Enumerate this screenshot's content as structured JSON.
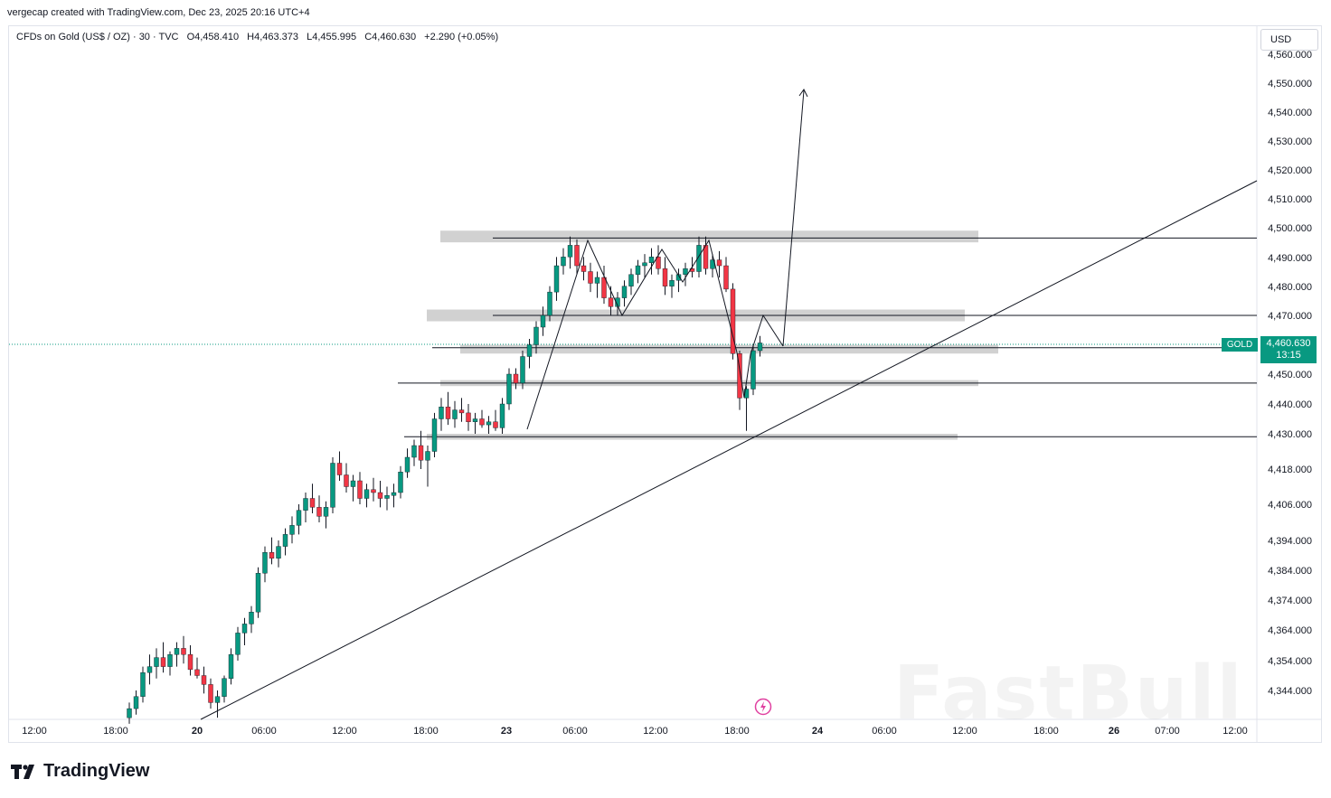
{
  "credit": "vergecap created with TradingView.com, Dec 23, 2025 20:16 UTC+4",
  "legend": {
    "symbol": "CFDs on Gold (US$ / OZ) · 30 · TVC",
    "open": "O4,458.410",
    "high": "H4,463.373",
    "low": "L4,455.995",
    "close": "C4,460.630",
    "change": "+2.290 (+0.05%)"
  },
  "currency": "USD",
  "price_badge": {
    "symbol": "GOLD",
    "price": "4,460.630",
    "countdown": "13:15"
  },
  "logo": "TradingView",
  "watermark": "FastBull",
  "colors": {
    "up": "#089981",
    "down": "#f23645",
    "zone": "#d1d1d1",
    "line": "#131722"
  },
  "chart_data": {
    "type": "candlestick",
    "yticks": [
      "4,560.000",
      "4,550.000",
      "4,540.000",
      "4,530.000",
      "4,520.000",
      "4,510.000",
      "4,500.000",
      "4,490.000",
      "4,480.000",
      "4,470.000",
      "4,450.000",
      "4,440.000",
      "4,430.000",
      "4,418.000",
      "4,406.000",
      "4,394.000",
      "4,384.000",
      "4,374.000",
      "4,364.000",
      "4,354.000",
      "4,344.000"
    ],
    "xticks": [
      {
        "label": "12:00",
        "bold": false
      },
      {
        "label": "18:00",
        "bold": false
      },
      {
        "label": "20",
        "bold": true
      },
      {
        "label": "06:00",
        "bold": false
      },
      {
        "label": "12:00",
        "bold": false
      },
      {
        "label": "18:00",
        "bold": false
      },
      {
        "label": "23",
        "bold": true
      },
      {
        "label": "06:00",
        "bold": false
      },
      {
        "label": "12:00",
        "bold": false
      },
      {
        "label": "18:00",
        "bold": false
      },
      {
        "label": "24",
        "bold": true
      },
      {
        "label": "06:00",
        "bold": false
      },
      {
        "label": "12:00",
        "bold": false
      },
      {
        "label": "18:00",
        "bold": false
      },
      {
        "label": "26",
        "bold": true
      },
      {
        "label": "07:00",
        "bold": false
      },
      {
        "label": "12:00",
        "bold": false
      }
    ],
    "last_price": 4460.63,
    "zones": [
      {
        "low": 4495,
        "high": 4499
      },
      {
        "low": 4468,
        "high": 4472
      },
      {
        "low": 4457,
        "high": 4460
      },
      {
        "low": 4446,
        "high": 4448
      },
      {
        "low": 4428,
        "high": 4430
      }
    ],
    "levels": [
      4496.5,
      4470,
      4459,
      4447,
      4429
    ],
    "candles": [
      [
        4335,
        4340,
        4333,
        4338
      ],
      [
        4338,
        4344,
        4336,
        4342
      ],
      [
        4342,
        4352,
        4340,
        4350
      ],
      [
        4350,
        4356,
        4346,
        4352
      ],
      [
        4352,
        4358,
        4348,
        4355
      ],
      [
        4355,
        4360,
        4350,
        4352
      ],
      [
        4352,
        4357,
        4349,
        4356
      ],
      [
        4356,
        4360,
        4352,
        4358
      ],
      [
        4358,
        4362,
        4353,
        4356
      ],
      [
        4356,
        4359,
        4349,
        4351
      ],
      [
        4351,
        4355,
        4348,
        4349
      ],
      [
        4349,
        4352,
        4343,
        4346
      ],
      [
        4346,
        4348,
        4338,
        4340
      ],
      [
        4340,
        4344,
        4335,
        4342
      ],
      [
        4342,
        4349,
        4340,
        4348
      ],
      [
        4348,
        4358,
        4346,
        4356
      ],
      [
        4356,
        4365,
        4354,
        4363
      ],
      [
        4363,
        4368,
        4359,
        4366
      ],
      [
        4366,
        4372,
        4363,
        4370
      ],
      [
        4370,
        4385,
        4368,
        4383
      ],
      [
        4383,
        4392,
        4380,
        4390
      ],
      [
        4390,
        4395,
        4386,
        4388
      ],
      [
        4388,
        4394,
        4385,
        4392
      ],
      [
        4392,
        4398,
        4389,
        4396
      ],
      [
        4396,
        4402,
        4393,
        4399
      ],
      [
        4399,
        4406,
        4396,
        4404
      ],
      [
        4404,
        4410,
        4400,
        4408
      ],
      [
        4408,
        4413,
        4403,
        4405
      ],
      [
        4405,
        4409,
        4400,
        4402
      ],
      [
        4402,
        4407,
        4398,
        4405
      ],
      [
        4405,
        4422,
        4403,
        4420
      ],
      [
        4420,
        4424,
        4414,
        4416
      ],
      [
        4416,
        4420,
        4410,
        4412
      ],
      [
        4412,
        4416,
        4407,
        4414
      ],
      [
        4414,
        4417,
        4406,
        4408
      ],
      [
        4408,
        4413,
        4405,
        4411
      ],
      [
        4411,
        4415,
        4407,
        4410
      ],
      [
        4410,
        4414,
        4405,
        4408
      ],
      [
        4408,
        4412,
        4404,
        4409
      ],
      [
        4409,
        4413,
        4405,
        4410
      ],
      [
        4410,
        4419,
        4408,
        4417
      ],
      [
        4417,
        4425,
        4415,
        4422
      ],
      [
        4422,
        4428,
        4419,
        4426
      ],
      [
        4426,
        4431,
        4418,
        4421
      ],
      [
        4421,
        4426,
        4412,
        4424
      ],
      [
        4424,
        4437,
        4422,
        4435
      ],
      [
        4435,
        4442,
        4431,
        4439
      ],
      [
        4439,
        4444,
        4433,
        4435
      ],
      [
        4435,
        4441,
        4432,
        4438
      ],
      [
        4438,
        4442,
        4434,
        4437
      ],
      [
        4437,
        4440,
        4431,
        4434
      ],
      [
        4434,
        4437,
        4430,
        4435
      ],
      [
        4435,
        4438,
        4432,
        4433
      ],
      [
        4433,
        4436,
        4430,
        4434
      ],
      [
        4434,
        4438,
        4431,
        4432
      ],
      [
        4432,
        4442,
        4430,
        4440
      ],
      [
        4440,
        4452,
        4438,
        4450
      ],
      [
        4450,
        4452,
        4445,
        4447
      ],
      [
        4447,
        4458,
        4445,
        4456
      ],
      [
        4456,
        4462,
        4452,
        4460
      ],
      [
        4460,
        4468,
        4457,
        4466
      ],
      [
        4466,
        4473,
        4463,
        4470
      ],
      [
        4470,
        4480,
        4468,
        4478
      ],
      [
        4478,
        4490,
        4475,
        4487
      ],
      [
        4487,
        4493,
        4484,
        4490
      ],
      [
        4490,
        4497,
        4486,
        4494
      ],
      [
        4494,
        4496,
        4484,
        4487
      ],
      [
        4487,
        4490,
        4482,
        4485
      ],
      [
        4485,
        4488,
        4478,
        4481
      ],
      [
        4481,
        4485,
        4476,
        4483
      ],
      [
        4483,
        4487,
        4474,
        4476
      ],
      [
        4476,
        4480,
        4470,
        4473
      ],
      [
        4473,
        4478,
        4470,
        4476
      ],
      [
        4476,
        4482,
        4473,
        4480
      ],
      [
        4480,
        4486,
        4477,
        4484
      ],
      [
        4484,
        4489,
        4481,
        4487
      ],
      [
        4487,
        4491,
        4483,
        4488
      ],
      [
        4488,
        4493,
        4484,
        4490
      ],
      [
        4490,
        4494,
        4484,
        4486
      ],
      [
        4486,
        4490,
        4477,
        4480
      ],
      [
        4480,
        4484,
        4476,
        4482
      ],
      [
        4482,
        4486,
        4478,
        4484
      ],
      [
        4484,
        4488,
        4480,
        4486
      ],
      [
        4486,
        4490,
        4483,
        4485
      ],
      [
        4485,
        4497,
        4483,
        4494
      ],
      [
        4494,
        4497,
        4484,
        4486
      ],
      [
        4486,
        4491,
        4483,
        4489
      ],
      [
        4489,
        4492,
        4483,
        4487
      ],
      [
        4487,
        4490,
        4478,
        4479
      ],
      [
        4479,
        4481,
        4455,
        4457
      ],
      [
        4457,
        4458,
        4438,
        4442
      ],
      [
        4442,
        4446,
        4431,
        4445
      ],
      [
        4445,
        4460,
        4443,
        4458
      ],
      [
        4458,
        4463,
        4456,
        4460.63
      ]
    ],
    "annotation_paths": [
      [
        [
          "7",
          4432
        ],
        [
          "12",
          4469
        ],
        [
          "15",
          4497
        ],
        [
          "20",
          4470
        ],
        [
          "25",
          4494
        ],
        [
          "29",
          4485
        ],
        [
          "33",
          4497
        ],
        [
          "38",
          4460
        ]
      ],
      [
        [
          "38",
          4460
        ],
        [
          "39",
          4441
        ],
        [
          "40",
          4460
        ]
      ],
      [
        [
          "40",
          4470
        ],
        [
          "41",
          4458
        ]
      ]
    ]
  }
}
